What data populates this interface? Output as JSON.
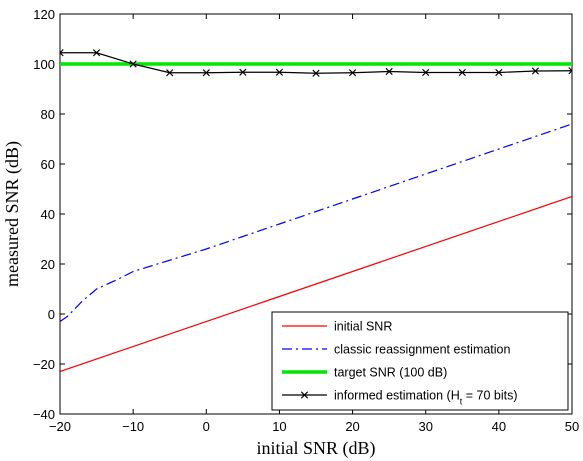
{
  "chart_data": {
    "type": "line",
    "xlabel": "initial SNR (dB)",
    "ylabel": "measured SNR (dB)",
    "xlim": [
      -20,
      50
    ],
    "ylim": [
      -40,
      120
    ],
    "xticks": [
      -20,
      -10,
      0,
      10,
      20,
      30,
      40,
      50
    ],
    "yticks": [
      -40,
      -20,
      0,
      20,
      40,
      60,
      80,
      100,
      120
    ],
    "xtick_labels": [
      "−20",
      "−10",
      "0",
      "10",
      "20",
      "30",
      "40",
      "50"
    ],
    "ytick_labels": [
      "−40",
      "−20",
      "0",
      "20",
      "40",
      "60",
      "80",
      "100",
      "120"
    ],
    "grid": false,
    "legend_position": "bottom-right",
    "series": [
      {
        "name": "initial SNR",
        "color": "#ff0000",
        "style": "solid",
        "marker": "none",
        "x": [
          -20,
          50
        ],
        "y": [
          -23,
          47
        ]
      },
      {
        "name": "classic reassignment estimation",
        "color": "#0000ff",
        "style": "dashdot",
        "marker": "none",
        "x": [
          -20,
          -19,
          -17,
          -15,
          -12,
          -10,
          -5,
          0,
          5,
          10,
          15,
          20,
          25,
          30,
          35,
          40,
          45,
          50
        ],
        "y": [
          -3,
          -1,
          5,
          10,
          14,
          17,
          21.5,
          26,
          31,
          36,
          41,
          46,
          51,
          56,
          61,
          66,
          71,
          76
        ]
      },
      {
        "name": "target SNR (100 dB)",
        "color": "#00e600",
        "style": "solid",
        "marker": "none",
        "x": [
          -20,
          50
        ],
        "y": [
          100,
          100
        ]
      },
      {
        "name": "informed estimation (H",
        "name_sub": "t",
        "name_tail": " = 70 bits)",
        "color": "#000000",
        "style": "solid",
        "marker": "x",
        "x": [
          -20,
          -15,
          -10,
          -5,
          0,
          5,
          10,
          15,
          20,
          25,
          30,
          35,
          40,
          45,
          50
        ],
        "y": [
          104.5,
          104.5,
          100,
          96.5,
          96.5,
          96.7,
          96.7,
          96.3,
          96.5,
          97,
          96.6,
          96.6,
          96.6,
          97.2,
          97.3
        ]
      }
    ]
  }
}
